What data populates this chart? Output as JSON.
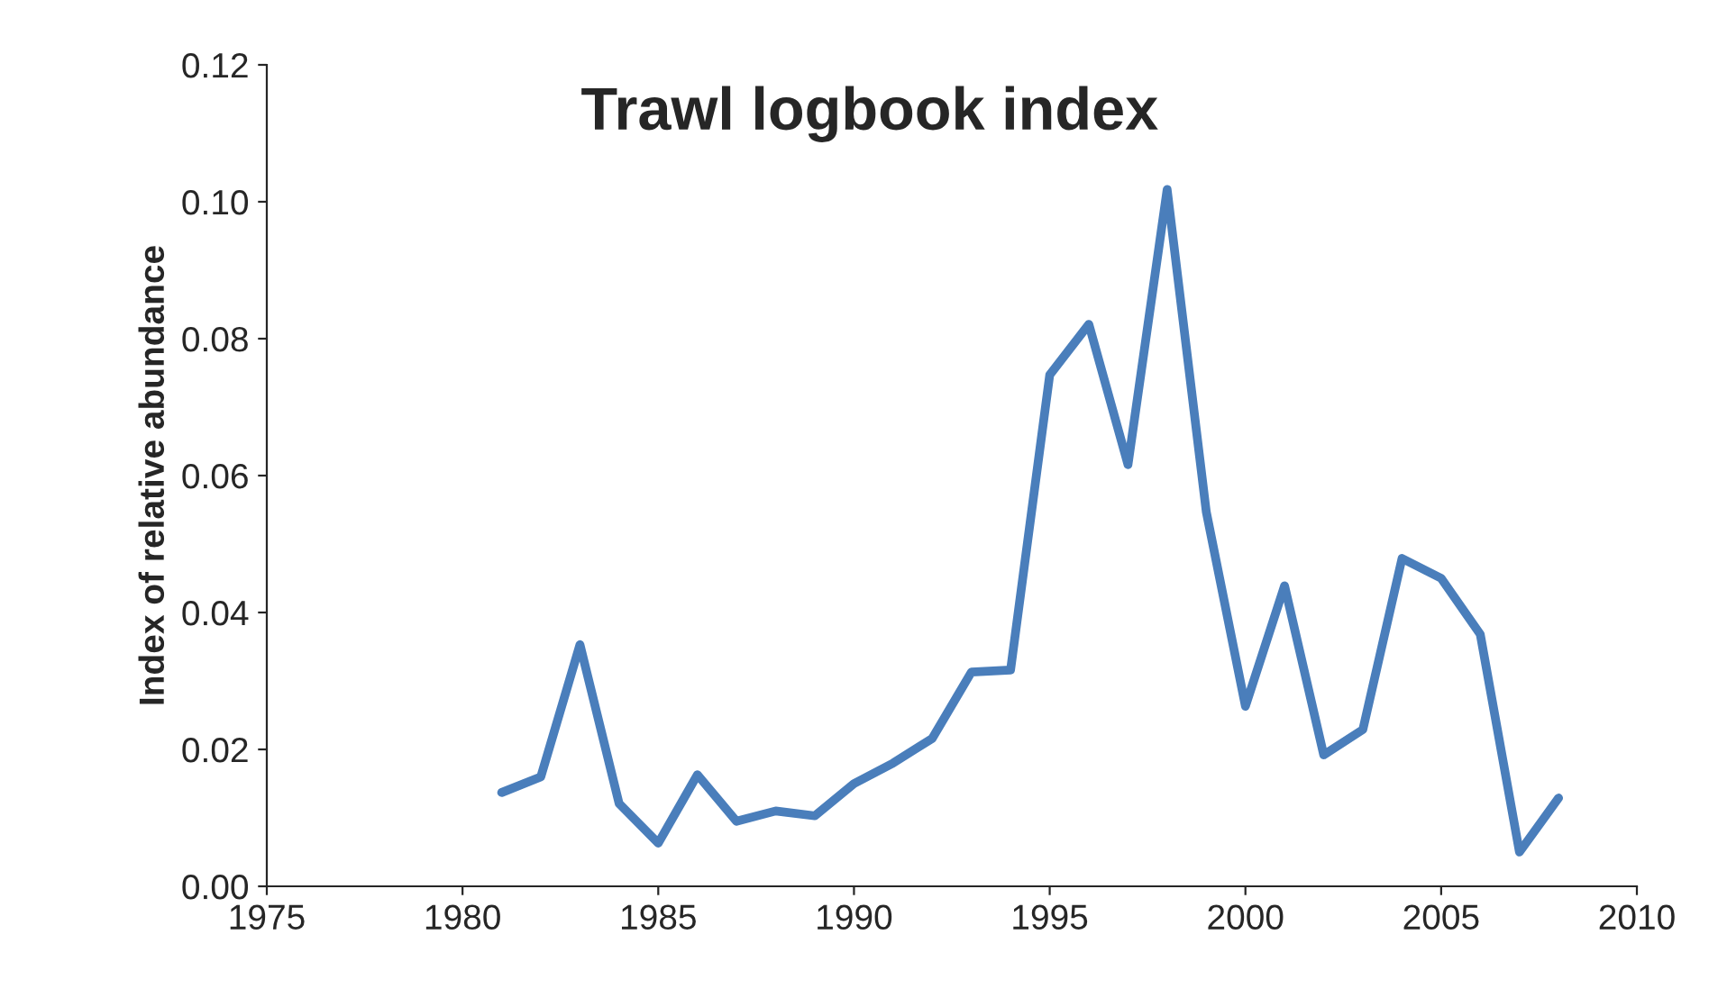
{
  "chart_data": {
    "type": "line",
    "title": "Trawl logbook index",
    "ylabel": "Index of relative abundance",
    "x": [
      1981,
      1982,
      1983,
      1984,
      1985,
      1986,
      1987,
      1988,
      1989,
      1990,
      1991,
      1992,
      1993,
      1994,
      1995,
      1996,
      1997,
      1998,
      1999,
      2000,
      2001,
      2002,
      2003,
      2004,
      2005,
      2006,
      2007,
      2008
    ],
    "series": [
      {
        "color": "#4a7ebb",
        "values": [
          0.0137,
          0.016,
          0.0353,
          0.0121,
          0.0063,
          0.0163,
          0.0095,
          0.011,
          0.0103,
          0.015,
          0.018,
          0.0216,
          0.0313,
          0.0316,
          0.0747,
          0.0821,
          0.0616,
          0.1018,
          0.0547,
          0.0263,
          0.0439,
          0.0192,
          0.0229,
          0.0479,
          0.045,
          0.0368,
          0.005,
          0.0129
        ]
      }
    ],
    "xlim": [
      1975,
      2010
    ],
    "xticks": [
      1975,
      1980,
      1985,
      1990,
      1995,
      2000,
      2005,
      2010
    ],
    "ylim": [
      0,
      0.12
    ],
    "yticks": [
      {
        "value": 0,
        "label": "0.00"
      },
      {
        "value": 0.02,
        "label": "0.02"
      },
      {
        "value": 0.04,
        "label": "0.04"
      },
      {
        "value": 0.06,
        "label": "0.06"
      },
      {
        "value": 0.08,
        "label": "0.08"
      },
      {
        "value": 0.1,
        "label": "0.10"
      },
      {
        "value": 0.12,
        "label": "0.12"
      }
    ],
    "grid": false,
    "legend": false,
    "marker": "none",
    "line_style": "solid"
  }
}
